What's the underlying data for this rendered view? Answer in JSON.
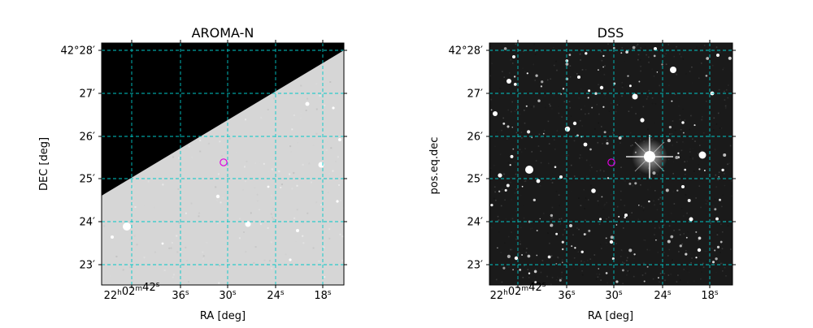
{
  "panels": [
    {
      "title": "AROMA-N",
      "xlabel": "RA [deg]",
      "ylabel": "DEC [deg]",
      "background": "light-survey-image",
      "ra_ticks": [
        {
          "h": "22",
          "m": "02",
          "s": "42"
        },
        {
          "s": "36"
        },
        {
          "s": "30"
        },
        {
          "s": "24"
        },
        {
          "s": "18"
        }
      ],
      "dec_ticks": [
        {
          "deg": "42",
          "min": "28"
        },
        {
          "min": "27"
        },
        {
          "min": "26"
        },
        {
          "min": "25"
        },
        {
          "min": "24"
        },
        {
          "min": "23"
        }
      ]
    },
    {
      "title": "DSS",
      "xlabel": "RA [deg]",
      "ylabel": "pos.eq.dec",
      "background": "dark-star-field",
      "ra_ticks": [
        {
          "h": "22",
          "m": "02",
          "s": "42"
        },
        {
          "s": "36"
        },
        {
          "s": "30"
        },
        {
          "s": "24"
        },
        {
          "s": "18"
        }
      ],
      "dec_ticks": [
        {
          "deg": "42",
          "min": "28"
        },
        {
          "min": "27"
        },
        {
          "min": "26"
        },
        {
          "min": "25"
        },
        {
          "min": "24"
        },
        {
          "min": "23"
        }
      ]
    }
  ],
  "colors": {
    "grid": "#00c8c8",
    "marker": "#e000e0",
    "masked": "#000000",
    "aroma_bg": "#d6d6d6",
    "dss_bg": "#1a1a1a"
  }
}
